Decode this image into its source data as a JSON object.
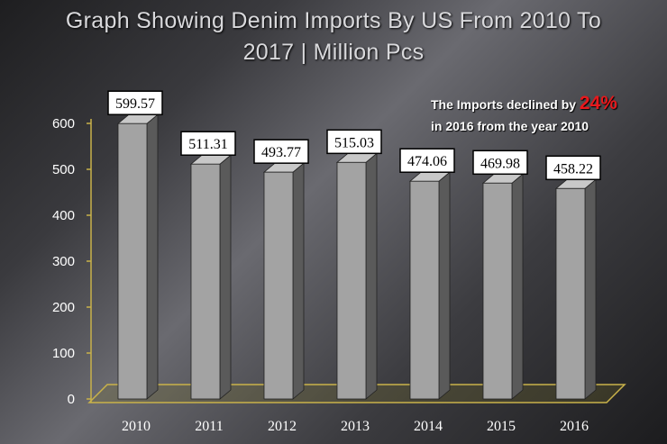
{
  "page": {
    "title_line1": "Graph Showing Denim Imports By US From 2010 To",
    "title_line2": "2017 | Million Pcs",
    "annotation_text": "The Imports declined by",
    "annotation_percent": "24%",
    "annotation_text2": "in 2016 from the year 2010"
  },
  "colors": {
    "bar_front": "#a3a3a3",
    "bar_side": "#5a5a5a",
    "bar_top": "#c8c8c8",
    "axis": "#c9b24a",
    "accent": "#e8181c"
  },
  "chart_data": {
    "type": "bar",
    "title": "Graph Showing Denim Imports By US From 2010 To 2017 | Million Pcs",
    "categories": [
      "2010",
      "2011",
      "2012",
      "2013",
      "2014",
      "2015",
      "2016"
    ],
    "values": [
      599.57,
      511.31,
      493.77,
      515.03,
      474.06,
      469.98,
      458.22
    ],
    "data_labels": [
      "599.57",
      "511.31",
      "493.77",
      "515.03",
      "474.06",
      "469.98",
      "458.22"
    ],
    "ylim": [
      0,
      600
    ],
    "yticks": [
      0,
      100,
      200,
      300,
      400,
      500,
      600
    ],
    "grid": false,
    "legend": "none"
  }
}
